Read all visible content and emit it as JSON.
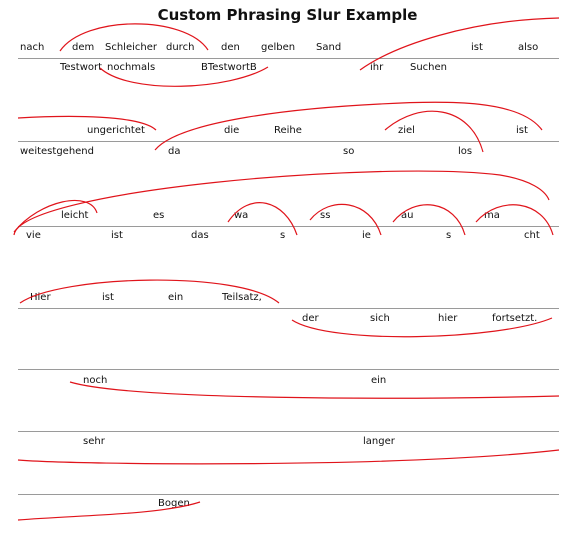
{
  "title": "Custom Phrasing Slur Example",
  "words": {
    "nach": "nach",
    "dem": "dem",
    "schleicher": "Schleicher",
    "durch": "durch",
    "den": "den",
    "gelben": "gelben",
    "sand": "Sand",
    "ist1": "ist",
    "also": "also",
    "testwort": "Testwort",
    "nochmals1": "nochmals",
    "btestwortb": "BTestwortB",
    "ihr": "ihr",
    "suchen": "Suchen",
    "ungerichtet": "ungerichtet",
    "die": "die",
    "reihe": "Reihe",
    "ziel": "ziel",
    "ist2": "ist",
    "weitestgehend": "weitestgehend",
    "da": "da",
    "so": "so",
    "los": "los",
    "leicht": "leicht",
    "es": "es",
    "wa": "wa",
    "ss": "ss",
    "au": "au",
    "ma": "ma",
    "vie": "vie",
    "ist3": "ist",
    "das": "das",
    "s1": "s",
    "ie": "ie",
    "s2": "s",
    "cht": "cht",
    "hier1": "Hier",
    "ist4": "ist",
    "ein1": "ein",
    "teilsatz": "Teilsatz,",
    "der": "der",
    "sich": "sich",
    "hier2": "hier",
    "fortsetzt": "fortsetzt.",
    "noch": "noch",
    "ein2": "ein",
    "sehr": "sehr",
    "langer": "langer",
    "bogen": "Bogen"
  },
  "colors": {
    "slur": "#e0141b",
    "staff_line": "#9a9a9a"
  }
}
